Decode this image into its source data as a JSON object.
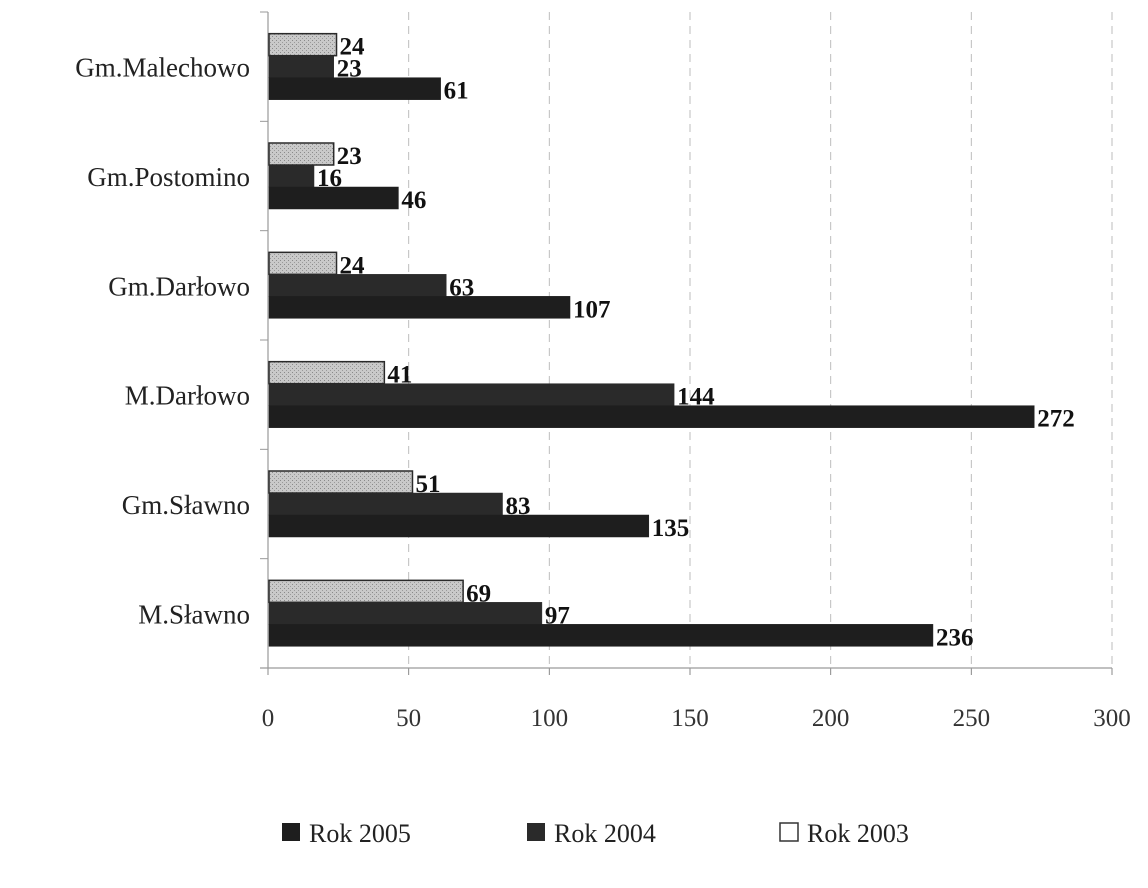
{
  "chart_data": {
    "type": "bar",
    "orientation": "horizontal",
    "categories": [
      "M.Sławno",
      "Gm.Sławno",
      "M.Darłowo",
      "Gm.Darłowo",
      "Gm.Postomino",
      "Gm.Malechowo"
    ],
    "series": [
      {
        "name": "Rok 2005",
        "values": [
          236,
          135,
          272,
          107,
          46,
          61
        ],
        "color": "#1e1e1e"
      },
      {
        "name": "Rok 2004",
        "values": [
          97,
          83,
          144,
          63,
          16,
          23
        ],
        "color": "#2a2a2a"
      },
      {
        "name": "Rok 2003",
        "values": [
          69,
          51,
          41,
          24,
          23,
          24
        ],
        "color": "#c4c4c4"
      }
    ],
    "xlim": [
      0,
      300
    ],
    "xticks": [
      "0",
      "50",
      "100",
      "150",
      "200",
      "250",
      "300"
    ],
    "grid": "vertical dashed",
    "legend_position": "bottom"
  }
}
